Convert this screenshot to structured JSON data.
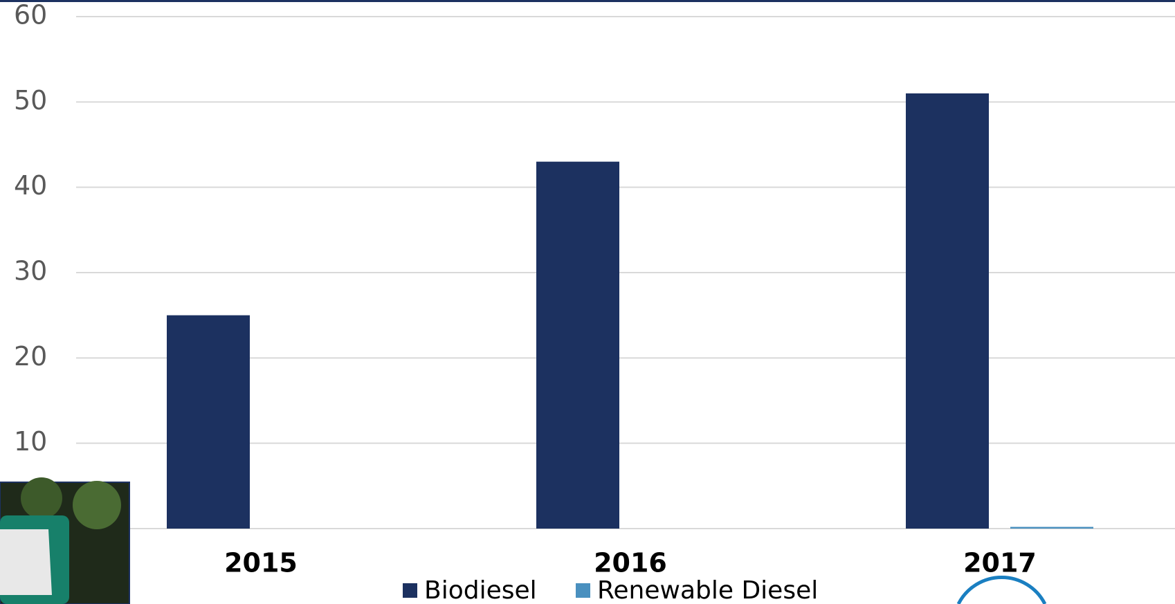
{
  "chart_data": {
    "type": "bar",
    "categories": [
      "2015",
      "2016",
      "2017"
    ],
    "series": [
      {
        "name": "Biodiesel",
        "color": "#1c3160",
        "values": [
          25,
          43,
          51
        ]
      },
      {
        "name": "Renewable Diesel",
        "color": "#4a90bf",
        "values": [
          0,
          0,
          0.2
        ]
      }
    ],
    "ylim": [
      0,
      60
    ],
    "yticks": [
      10,
      20,
      30,
      40,
      50,
      60
    ],
    "grid": true
  }
}
